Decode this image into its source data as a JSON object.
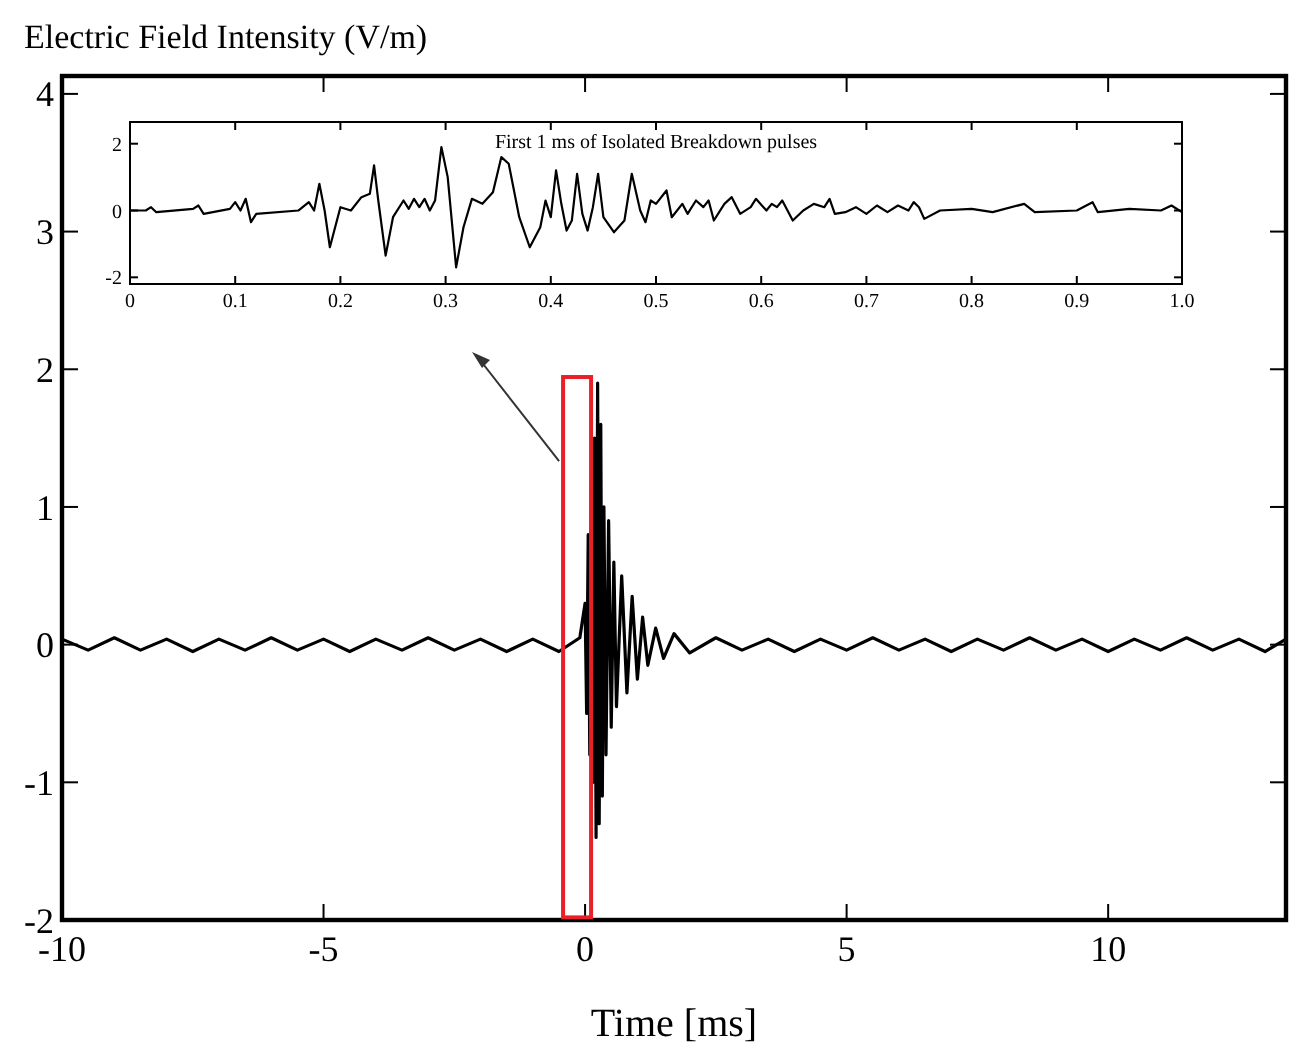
{
  "chart_data": [
    {
      "type": "line",
      "xlabel": "Time [ms]",
      "ylabel": "Electric Field Intensity (V/m)",
      "xlim": [
        -10,
        13.4
      ],
      "xticks": [
        -10,
        -5,
        0,
        5,
        10
      ],
      "ylim": [
        -2,
        4.13
      ],
      "yticks": [
        -2,
        -1,
        0,
        1,
        2,
        3,
        4
      ],
      "color": "#000000",
      "x": [
        -10,
        -9.5,
        -9,
        -8.5,
        -8,
        -7.5,
        -7,
        -6.5,
        -6,
        -5.5,
        -5,
        -4.5,
        -4,
        -3.5,
        -3,
        -2.5,
        -2,
        -1.5,
        -1,
        -0.5,
        -0.1,
        0,
        0.03,
        0.06,
        0.09,
        0.12,
        0.15,
        0.18,
        0.21,
        0.24,
        0.27,
        0.3,
        0.33,
        0.36,
        0.4,
        0.45,
        0.5,
        0.55,
        0.6,
        0.7,
        0.8,
        0.9,
        1,
        1.1,
        1.2,
        1.35,
        1.5,
        1.7,
        2,
        2.5,
        3,
        3.5,
        4,
        4.5,
        5,
        5.5,
        6,
        6.5,
        7,
        7.5,
        8,
        8.5,
        9,
        9.5,
        10,
        10.5,
        11,
        11.5,
        12,
        12.5,
        13,
        13.4
      ],
      "values": [
        0.04,
        -0.04,
        0.05,
        -0.04,
        0.04,
        -0.05,
        0.04,
        -0.04,
        0.05,
        -0.04,
        0.04,
        -0.05,
        0.04,
        -0.04,
        0.05,
        -0.04,
        0.04,
        -0.05,
        0.04,
        -0.05,
        0.05,
        0.3,
        -0.5,
        0.8,
        -0.8,
        1.2,
        -1,
        1.5,
        -1.4,
        1.9,
        -1.3,
        1.6,
        -1.1,
        1,
        -0.8,
        0.9,
        -0.6,
        0.6,
        -0.45,
        0.5,
        -0.35,
        0.35,
        -0.25,
        0.2,
        -0.15,
        0.12,
        -0.1,
        0.08,
        -0.06,
        0.05,
        -0.04,
        0.04,
        -0.05,
        0.04,
        -0.04,
        0.05,
        -0.04,
        0.04,
        -0.05,
        0.04,
        -0.04,
        0.05,
        -0.04,
        0.04,
        -0.05,
        0.04,
        -0.04,
        0.05,
        -0.04,
        0.04,
        -0.05,
        0.04
      ]
    },
    {
      "type": "line",
      "title": "First 1 ms of Isolated Breakdown pulses",
      "xlim": [
        0,
        1
      ],
      "xticks": [
        0,
        0.1,
        0.2,
        0.3,
        0.4,
        0.5,
        0.6,
        0.7,
        0.8,
        0.9,
        {
          "value": 1,
          "label": "1.0"
        }
      ],
      "ylim": [
        -2.2,
        2.65
      ],
      "yticks": [
        -2,
        0,
        2
      ],
      "color": "#000000",
      "x": [
        0,
        0.015,
        0.02,
        0.025,
        0.06,
        0.065,
        0.07,
        0.095,
        0.1,
        0.105,
        0.11,
        0.115,
        0.12,
        0.16,
        0.17,
        0.175,
        0.18,
        0.185,
        0.19,
        0.2,
        0.21,
        0.22,
        0.228,
        0.232,
        0.236,
        0.243,
        0.25,
        0.26,
        0.265,
        0.27,
        0.275,
        0.28,
        0.285,
        0.29,
        0.296,
        0.302,
        0.31,
        0.317,
        0.325,
        0.335,
        0.345,
        0.353,
        0.36,
        0.37,
        0.38,
        0.39,
        0.395,
        0.4,
        0.405,
        0.41,
        0.415,
        0.42,
        0.425,
        0.43,
        0.435,
        0.44,
        0.445,
        0.45,
        0.46,
        0.47,
        0.477,
        0.485,
        0.49,
        0.495,
        0.5,
        0.51,
        0.515,
        0.525,
        0.53,
        0.538,
        0.545,
        0.55,
        0.555,
        0.565,
        0.572,
        0.58,
        0.59,
        0.595,
        0.605,
        0.61,
        0.615,
        0.62,
        0.63,
        0.64,
        0.65,
        0.66,
        0.665,
        0.67,
        0.68,
        0.69,
        0.7,
        0.71,
        0.72,
        0.73,
        0.74,
        0.745,
        0.75,
        0.755,
        0.77,
        0.8,
        0.82,
        0.85,
        0.86,
        0.9,
        0.915,
        0.92,
        0.95,
        0.98,
        0.99,
        1
      ],
      "values": [
        0,
        0,
        0.1,
        -0.05,
        0.05,
        0.15,
        -0.1,
        0.05,
        0.25,
        0,
        0.35,
        -0.35,
        -0.1,
        0,
        0.25,
        0,
        0.8,
        0,
        -1.1,
        0.1,
        0,
        0.4,
        0.5,
        1.35,
        0.3,
        -1.35,
        -0.2,
        0.3,
        0.05,
        0.35,
        0.1,
        0.35,
        0,
        0.3,
        1.9,
        1,
        -1.7,
        -0.5,
        0.35,
        0.2,
        0.55,
        1.6,
        1.4,
        -0.2,
        -1.1,
        -0.5,
        0.3,
        -0.2,
        1.2,
        0.2,
        -0.6,
        -0.3,
        1.1,
        -0.1,
        -0.6,
        0.1,
        1.1,
        -0.2,
        -0.65,
        -0.3,
        1.1,
        0,
        -0.35,
        0.3,
        0.2,
        0.6,
        -0.2,
        0.2,
        -0.1,
        0.3,
        0.1,
        0.3,
        -0.3,
        0.2,
        0.4,
        -0.1,
        0.1,
        0.35,
        0,
        0.2,
        0.1,
        0.3,
        -0.3,
        0,
        0.2,
        0.1,
        0.35,
        -0.1,
        -0.05,
        0.1,
        -0.1,
        0.15,
        -0.05,
        0.15,
        0,
        0.25,
        0.1,
        -0.25,
        0,
        0.05,
        -0.05,
        0.2,
        -0.05,
        0,
        0.25,
        -0.05,
        0.05,
        0,
        0.15,
        -0.05
      ]
    }
  ]
}
